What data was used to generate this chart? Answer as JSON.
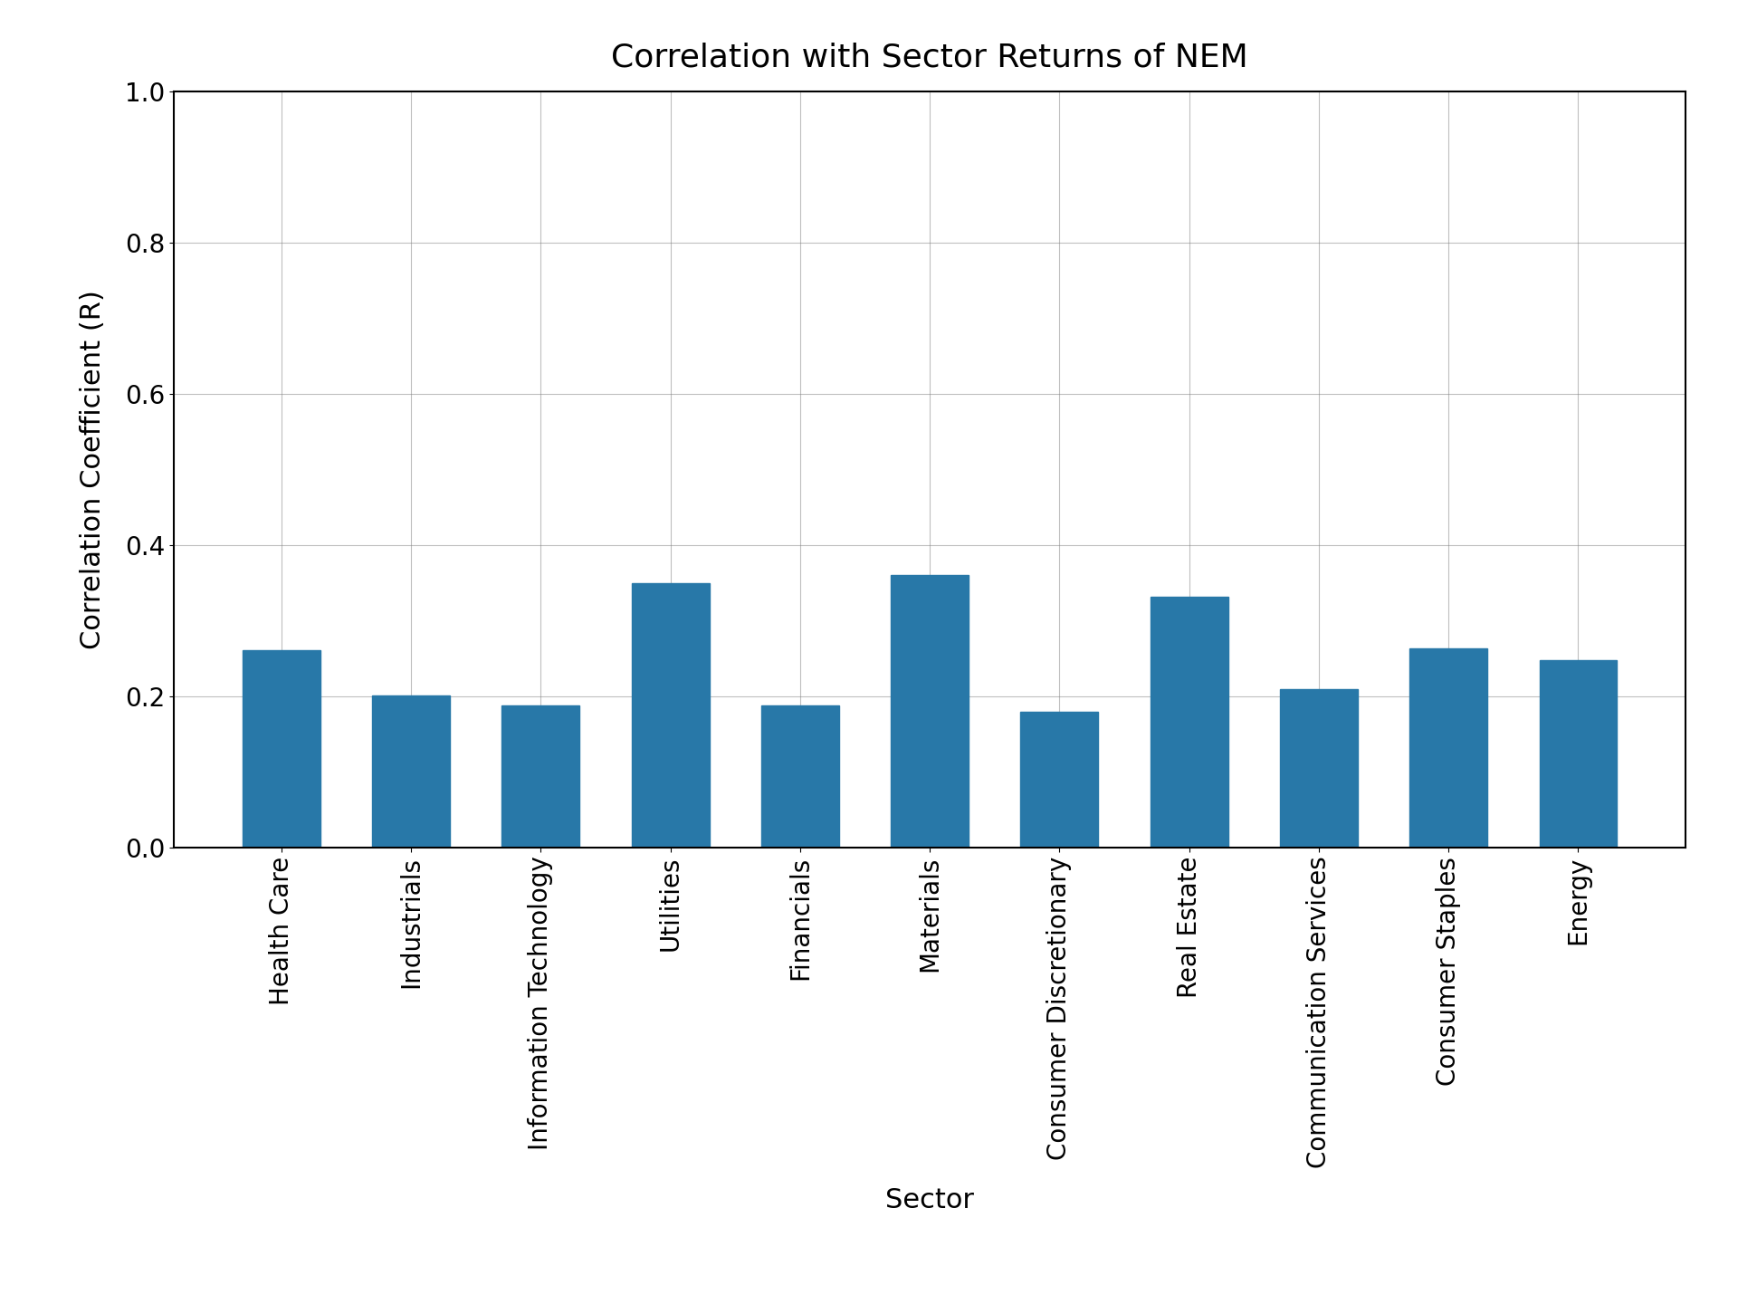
{
  "title": "Correlation with Sector Returns of NEM",
  "xlabel": "Sector",
  "ylabel": "Correlation Coefficient (R)",
  "categories": [
    "Health Care",
    "Industrials",
    "Information Technology",
    "Utilities",
    "Financials",
    "Materials",
    "Consumer Discretionary",
    "Real Estate",
    "Communication Services",
    "Consumer Staples",
    "Energy"
  ],
  "values": [
    0.261,
    0.201,
    0.188,
    0.35,
    0.188,
    0.36,
    0.179,
    0.332,
    0.21,
    0.263,
    0.248
  ],
  "bar_color": "#2878a8",
  "ylim": [
    0.0,
    1.0
  ],
  "yticks": [
    0.0,
    0.2,
    0.4,
    0.6,
    0.8,
    1.0
  ],
  "title_fontsize": 26,
  "label_fontsize": 22,
  "tick_fontsize": 20,
  "background_color": "#ffffff",
  "grid": true
}
